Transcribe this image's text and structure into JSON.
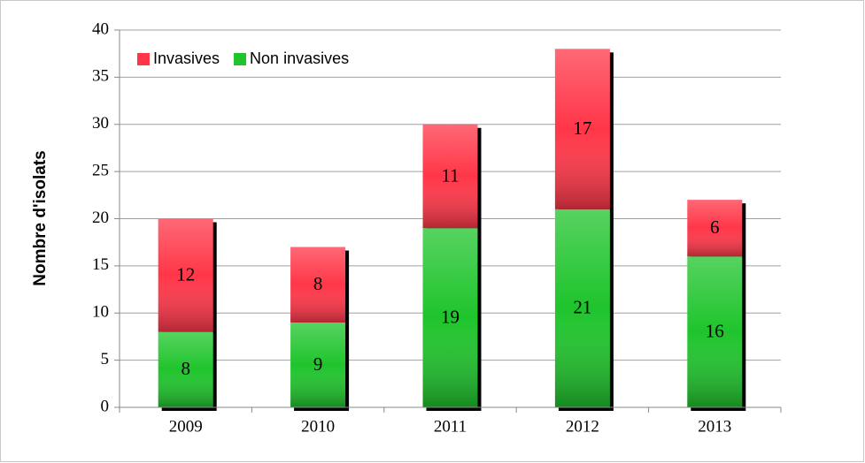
{
  "chart_data": {
    "type": "stacked_bar",
    "y_label": "Nombre d'isolats",
    "categories": [
      "2009",
      "2010",
      "2011",
      "2012",
      "2013"
    ],
    "series": [
      {
        "name": "Non invasives",
        "color": "#1fc42c",
        "values": [
          8,
          9,
          19,
          21,
          16
        ]
      },
      {
        "name": "Invasives",
        "color": "#ff3648",
        "values": [
          12,
          8,
          11,
          17,
          6
        ]
      }
    ],
    "legend_order": [
      1,
      0
    ],
    "legend": "top-left",
    "ylim": [
      0,
      40
    ],
    "yticks": [
      0,
      5,
      10,
      15,
      20,
      25,
      30,
      35,
      40
    ],
    "grid": true
  }
}
